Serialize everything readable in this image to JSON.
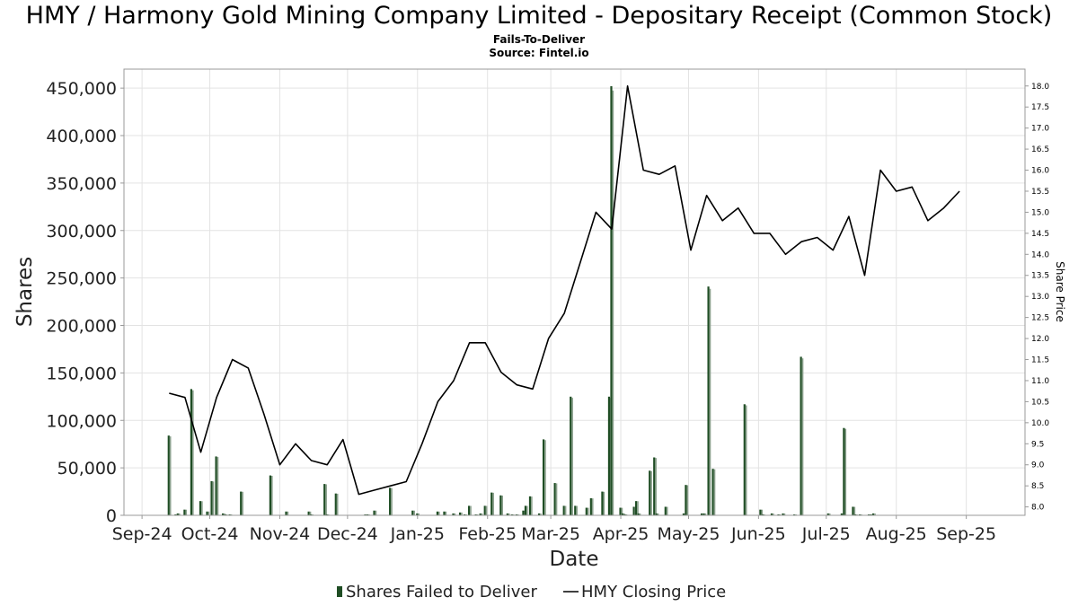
{
  "chart_data": {
    "type": "bar",
    "title": "HMY / Harmony Gold Mining Company Limited - Depositary Receipt (Common Stock)",
    "subtitle": "Fails-To-Deliver",
    "source": "Source: Fintel.io",
    "xlabel": "Date",
    "ylabel": "Shares",
    "ylabel_right": "Share Price",
    "xlim": [
      "2024-08-24",
      "2025-09-27"
    ],
    "ylim": [
      0,
      470000
    ],
    "ylim_right": [
      7.8,
      18.4
    ],
    "grid": true,
    "legend_position": "bottom-center",
    "x_ticks": [
      {
        "date": "2024-09-01",
        "label": "Sep-24"
      },
      {
        "date": "2024-10-01",
        "label": "Oct-24"
      },
      {
        "date": "2024-11-01",
        "label": "Nov-24"
      },
      {
        "date": "2024-12-01",
        "label": "Dec-24"
      },
      {
        "date": "2025-01-01",
        "label": "Jan-25"
      },
      {
        "date": "2025-02-01",
        "label": "Feb-25"
      },
      {
        "date": "2025-03-01",
        "label": "Mar-25"
      },
      {
        "date": "2025-04-01",
        "label": "Apr-25"
      },
      {
        "date": "2025-05-01",
        "label": "May-25"
      },
      {
        "date": "2025-06-01",
        "label": "Jun-25"
      },
      {
        "date": "2025-07-01",
        "label": "Jul-25"
      },
      {
        "date": "2025-08-01",
        "label": "Aug-25"
      },
      {
        "date": "2025-09-01",
        "label": "Sep-25"
      }
    ],
    "y_ticks": [
      {
        "value": 0,
        "label": "0"
      },
      {
        "value": 50000,
        "label": "50,000"
      },
      {
        "value": 100000,
        "label": "100,000"
      },
      {
        "value": 150000,
        "label": "150,000"
      },
      {
        "value": 200000,
        "label": "200,000"
      },
      {
        "value": 250000,
        "label": "250,000"
      },
      {
        "value": 300000,
        "label": "300,000"
      },
      {
        "value": 350000,
        "label": "350,000"
      },
      {
        "value": 400000,
        "label": "400,000"
      },
      {
        "value": 450000,
        "label": "450,000"
      }
    ],
    "y_ticks_right": [
      {
        "value": 8.0,
        "label": "8.0"
      },
      {
        "value": 8.5,
        "label": "8.5"
      },
      {
        "value": 9.0,
        "label": "9.0"
      },
      {
        "value": 9.5,
        "label": "9.5"
      },
      {
        "value": 10.0,
        "label": "10.0"
      },
      {
        "value": 10.5,
        "label": "10.5"
      },
      {
        "value": 11.0,
        "label": "11.0"
      },
      {
        "value": 11.5,
        "label": "11.5"
      },
      {
        "value": 12.0,
        "label": "12.0"
      },
      {
        "value": 12.5,
        "label": "12.5"
      },
      {
        "value": 13.0,
        "label": "13.0"
      },
      {
        "value": 13.5,
        "label": "13.5"
      },
      {
        "value": 14.0,
        "label": "14.0"
      },
      {
        "value": 14.5,
        "label": "14.5"
      },
      {
        "value": 15.0,
        "label": "15.0"
      },
      {
        "value": 15.5,
        "label": "15.5"
      },
      {
        "value": 16.0,
        "label": "16.0"
      },
      {
        "value": 16.5,
        "label": "16.5"
      },
      {
        "value": 17.0,
        "label": "17.0"
      },
      {
        "value": 17.5,
        "label": "17.5"
      },
      {
        "value": 18.0,
        "label": "18.0"
      }
    ],
    "series": [
      {
        "name": "Shares Failed to Deliver",
        "type": "bar",
        "color": "#1f4d24",
        "x": [
          "2024-09-13",
          "2024-09-16",
          "2024-09-17",
          "2024-09-20",
          "2024-09-23",
          "2024-09-27",
          "2024-09-30",
          "2024-10-02",
          "2024-10-04",
          "2024-10-07",
          "2024-10-08",
          "2024-10-10",
          "2024-10-15",
          "2024-10-28",
          "2024-11-04",
          "2024-11-14",
          "2024-11-15",
          "2024-11-21",
          "2024-11-22",
          "2024-11-26",
          "2024-12-09",
          "2024-12-10",
          "2024-12-13",
          "2024-12-20",
          "2024-12-30",
          "2025-01-01",
          "2025-01-10",
          "2025-01-13",
          "2025-01-17",
          "2025-01-20",
          "2025-01-22",
          "2025-01-24",
          "2025-01-27",
          "2025-01-29",
          "2025-01-31",
          "2025-02-03",
          "2025-02-07",
          "2025-02-10",
          "2025-02-12",
          "2025-02-14",
          "2025-02-17",
          "2025-02-18",
          "2025-02-20",
          "2025-02-24",
          "2025-02-26",
          "2025-03-03",
          "2025-03-07",
          "2025-03-10",
          "2025-03-12",
          "2025-03-17",
          "2025-03-19",
          "2025-03-24",
          "2025-03-27",
          "2025-03-28",
          "2025-04-01",
          "2025-04-02",
          "2025-04-03",
          "2025-04-07",
          "2025-04-08",
          "2025-04-09",
          "2025-04-14",
          "2025-04-16",
          "2025-04-17",
          "2025-04-21",
          "2025-04-29",
          "2025-04-30",
          "2025-05-07",
          "2025-05-08",
          "2025-05-10",
          "2025-05-12",
          "2025-05-26",
          "2025-06-02",
          "2025-06-03",
          "2025-06-07",
          "2025-06-10",
          "2025-06-12",
          "2025-06-17",
          "2025-06-20",
          "2025-07-02",
          "2025-07-08",
          "2025-07-09",
          "2025-07-13",
          "2025-07-14",
          "2025-07-16",
          "2025-07-20",
          "2025-07-21",
          "2025-07-22"
        ],
        "values": [
          84000,
          1000,
          2000,
          6000,
          133000,
          15000,
          4000,
          36000,
          62000,
          2000,
          1000,
          1000,
          25000,
          42000,
          4000,
          4000,
          1000,
          33000,
          1000,
          23000,
          1000,
          1000,
          5000,
          29000,
          5000,
          2000,
          4000,
          4000,
          2000,
          3000,
          1000,
          10000,
          1000,
          2000,
          10000,
          24000,
          21000,
          2000,
          1000,
          1000,
          5000,
          10000,
          20000,
          2000,
          80000,
          34000,
          10000,
          125000,
          10000,
          8000,
          18000,
          25000,
          125000,
          452000,
          8000,
          2000,
          1000,
          9000,
          15000,
          2000,
          47000,
          61000,
          2000,
          9000,
          2000,
          32000,
          2000,
          2000,
          241000,
          49000,
          117000,
          6000,
          1000,
          2000,
          1000,
          2000,
          1000,
          167000,
          2000,
          2000,
          92000,
          9000,
          1000,
          1000,
          1000,
          1000,
          2000
        ]
      },
      {
        "name": "HMY Closing Price",
        "type": "line",
        "color": "#000000",
        "x": [
          "2024-09-13",
          "2024-09-20",
          "2024-09-27",
          "2024-10-04",
          "2024-10-11",
          "2024-10-18",
          "2024-10-25",
          "2024-11-01",
          "2024-11-08",
          "2024-11-15",
          "2024-11-22",
          "2024-11-29",
          "2024-12-06",
          "2024-12-13",
          "2024-12-20",
          "2024-12-27",
          "2025-01-03",
          "2025-01-10",
          "2025-01-17",
          "2025-01-24",
          "2025-01-31",
          "2025-02-07",
          "2025-02-14",
          "2025-02-21",
          "2025-02-28",
          "2025-03-07",
          "2025-03-14",
          "2025-03-21",
          "2025-03-28",
          "2025-04-04",
          "2025-04-11",
          "2025-04-18",
          "2025-04-25",
          "2025-05-02",
          "2025-05-09",
          "2025-05-16",
          "2025-05-23",
          "2025-05-30",
          "2025-06-06",
          "2025-06-13",
          "2025-06-20",
          "2025-06-27",
          "2025-07-04",
          "2025-07-11",
          "2025-07-18",
          "2025-07-25",
          "2025-08-01",
          "2025-08-08",
          "2025-08-15",
          "2025-08-22",
          "2025-08-29"
        ],
        "values": [
          10.7,
          10.6,
          9.3,
          10.6,
          11.5,
          11.3,
          10.2,
          9.0,
          9.5,
          9.1,
          9.0,
          9.6,
          8.3,
          8.4,
          8.5,
          8.6,
          9.5,
          10.5,
          11.0,
          11.9,
          11.9,
          11.2,
          10.9,
          10.8,
          12.0,
          12.6,
          13.8,
          15.0,
          14.6,
          18.0,
          16.0,
          15.9,
          16.1,
          14.1,
          15.4,
          14.8,
          15.1,
          14.5,
          14.5,
          14.0,
          14.3,
          14.4,
          14.1,
          14.9,
          13.5,
          16.0,
          15.5,
          15.6,
          14.8,
          15.1,
          15.5
        ]
      }
    ]
  }
}
